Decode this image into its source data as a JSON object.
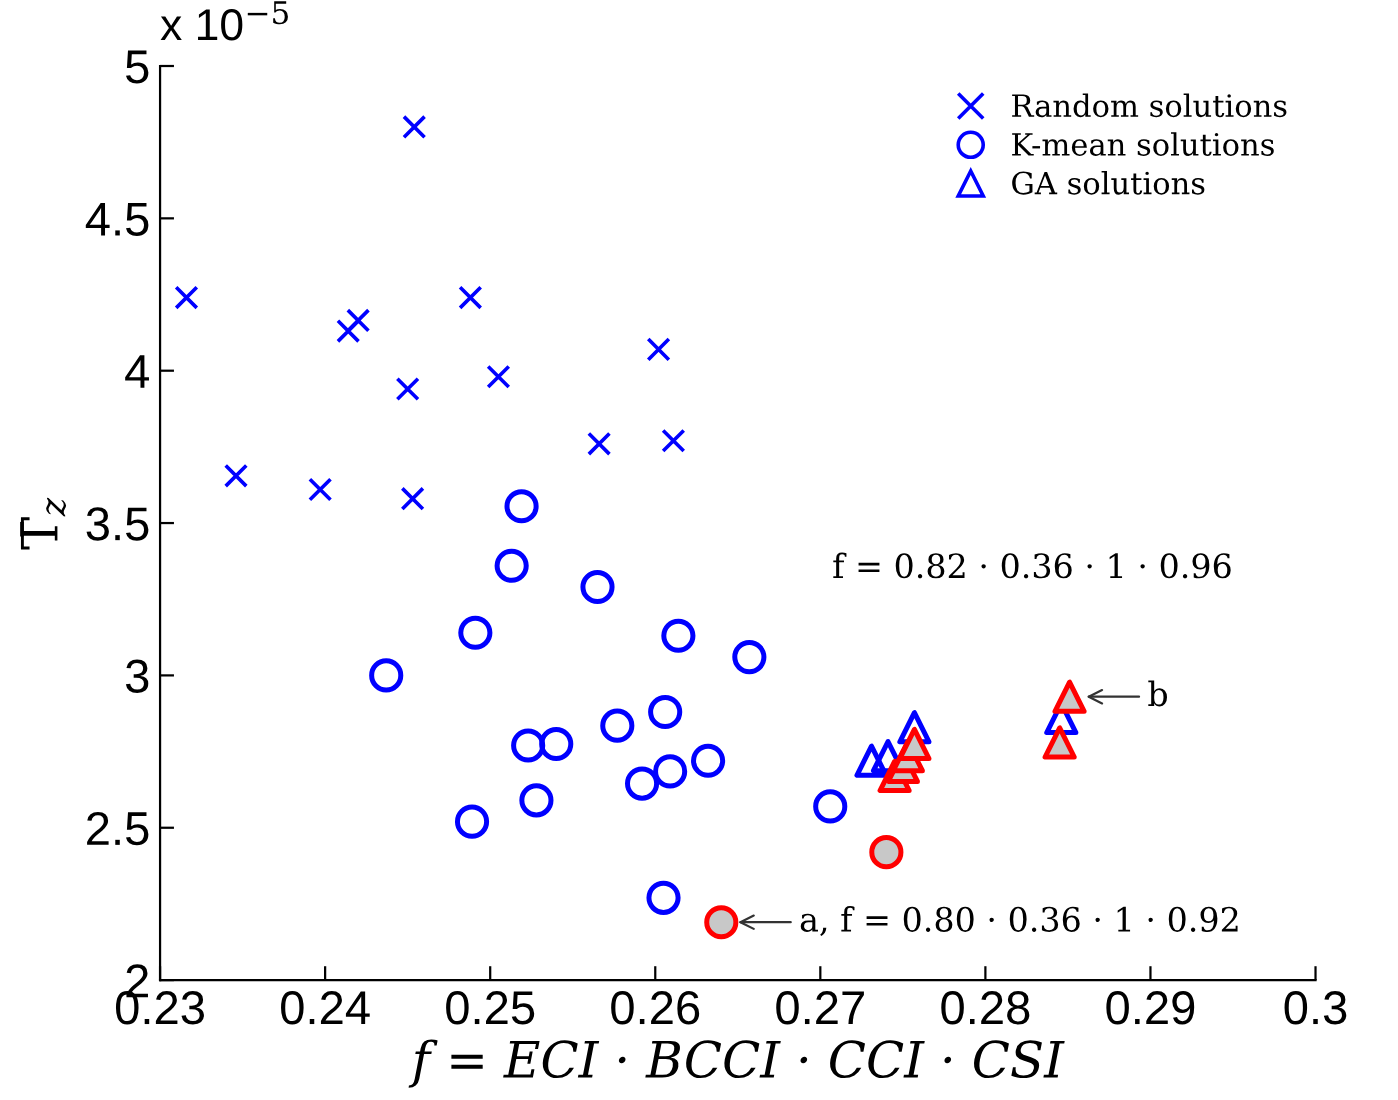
{
  "chart_data": {
    "type": "scatter",
    "xlabel": "f = ECI · BCCI · CCI · CSI",
    "ylabel": "T̄$_{z}$",
    "xlim": [
      0.23,
      0.3
    ],
    "xticks": [
      0.23,
      0.24,
      0.25,
      0.26,
      0.27,
      0.28,
      0.29,
      0.3
    ],
    "ylim": [
      2,
      5
    ],
    "yticks": [
      2,
      2.5,
      3,
      3.5,
      4,
      4.5,
      5
    ],
    "grid": false,
    "legend": "top right",
    "series": [
      {
        "name": "Random solutions",
        "color": "#0000ff",
        "marker": "cross",
        "x": [
          0.2316,
          0.2346,
          0.2397,
          0.2414,
          0.242,
          0.2454,
          0.245,
          0.2453,
          0.2488,
          0.2505,
          0.2566,
          0.2602,
          0.2611
        ],
        "values": [
          4.24,
          3.655,
          3.61,
          4.13,
          4.165,
          4.8,
          3.94,
          3.58,
          4.24,
          3.98,
          3.76,
          4.07,
          3.77
        ]
      },
      {
        "name": "K-mean solutions",
        "color": "#0000ff",
        "marker": "circle",
        "x": [
          0.2519,
          0.2513,
          0.2565,
          0.2491,
          0.2614,
          0.2657,
          0.2437,
          0.2606,
          0.2577,
          0.2523,
          0.254,
          0.2632,
          0.2609,
          0.2592,
          0.2528,
          0.2489,
          0.2605,
          0.2706
        ],
        "values": [
          3.555,
          3.36,
          3.29,
          3.14,
          3.13,
          3.06,
          3.0,
          2.88,
          2.835,
          2.77,
          2.775,
          2.72,
          2.685,
          2.645,
          2.59,
          2.52,
          2.27,
          2.57
        ]
      },
      {
        "name": "GA solutions",
        "color": "#0000ff",
        "marker": "triangle",
        "x": [
          0.2731,
          0.2741,
          0.2757,
          0.2845,
          0.2846
        ],
        "values": [
          2.72,
          2.735,
          2.83,
          null,
          2.86
        ]
      },
      {
        "color": "#ff0000",
        "marker": "circle",
        "x": [
          0.264,
          0.274
        ],
        "values": [
          2.19,
          2.42
        ]
      },
      {
        "color": "#ff0000",
        "marker": "triangle",
        "x": [
          0.2745,
          0.275,
          0.2753,
          0.2757,
          0.2845,
          0.2851
        ],
        "values": [
          2.67,
          2.7,
          2.735,
          2.775,
          2.78,
          2.93
        ]
      }
    ],
    "annotations": [
      "x 10$^{−5}$",
      {
        "text": "a, f = 0.80 · 0.36 · 1 · 0.92",
        "x": 0.264,
        "y": 2.19
      },
      {
        "text": "b",
        "x": 0.2851,
        "y": 2.93
      },
      "f = 0.82 · 0.36 · 1 · 0.96"
    ]
  }
}
